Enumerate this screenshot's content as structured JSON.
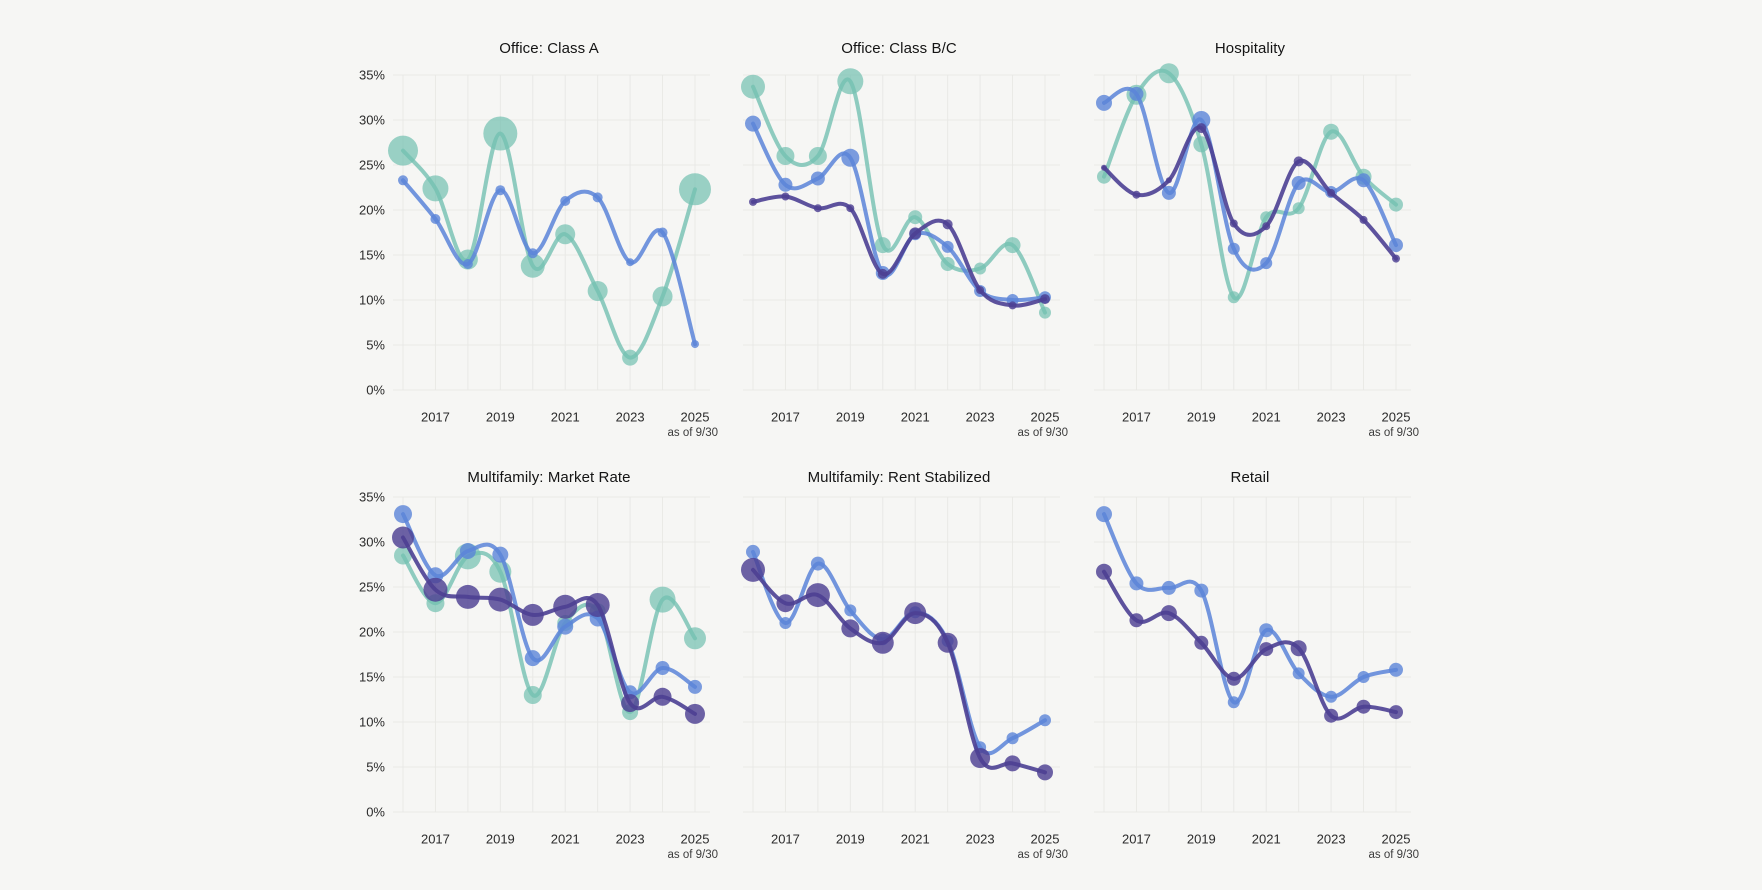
{
  "page": {
    "background": "#f6f6f4"
  },
  "colors": {
    "teal": "#74c0b1",
    "blue": "#5b84d8",
    "purple": "#4d4093",
    "grid": "#e9e9e6",
    "title_text": "#141414",
    "tick_text": "#2b2b2b"
  },
  "axes": {
    "y_ticks": [
      "35%",
      "30%",
      "25%",
      "20%",
      "15%",
      "10%",
      "5%",
      "0%"
    ],
    "y_tick_values": [
      35,
      30,
      25,
      20,
      15,
      10,
      5,
      0
    ],
    "ylim": [
      0,
      35
    ],
    "x_ticks": [
      "2017",
      "2019",
      "2021",
      "2023",
      "2025"
    ],
    "x_tick_years": [
      2017,
      2019,
      2021,
      2023,
      2025
    ],
    "footnote": "as of 9/30",
    "years": [
      2016,
      2017,
      2018,
      2019,
      2020,
      2021,
      2022,
      2023,
      2024,
      2025
    ]
  },
  "chart_data": [
    {
      "type": "line",
      "title": "Office: Class A",
      "y_unit": "percent",
      "x": [
        2016,
        2017,
        2018,
        2019,
        2020,
        2021,
        2022,
        2023,
        2024,
        2025
      ],
      "series": [
        {
          "name": "teal",
          "color": "teal",
          "values": [
            26.6,
            22.4,
            14.5,
            28.5,
            13.8,
            17.3,
            11.0,
            3.6,
            10.4,
            22.3
          ],
          "marker_radii": [
            15,
            13,
            10,
            17,
            12,
            10,
            10,
            8,
            10,
            16
          ]
        },
        {
          "name": "blue",
          "color": "blue",
          "values": [
            23.3,
            19.0,
            14.0,
            22.2,
            15.2,
            21.0,
            21.4,
            14.2,
            17.5,
            5.1
          ],
          "marker_radii": [
            5,
            5,
            5,
            5,
            5,
            5,
            5,
            4,
            5,
            4
          ]
        }
      ]
    },
    {
      "type": "line",
      "title": "Office: Class B/C",
      "y_unit": "percent",
      "x": [
        2016,
        2017,
        2018,
        2019,
        2020,
        2021,
        2022,
        2023,
        2024,
        2025
      ],
      "series": [
        {
          "name": "teal",
          "color": "teal",
          "values": [
            33.7,
            26.0,
            26.0,
            34.3,
            16.1,
            19.2,
            14.0,
            13.5,
            16.1,
            8.6
          ],
          "marker_radii": [
            12,
            9,
            9,
            13,
            8,
            7,
            7,
            6,
            8,
            6
          ]
        },
        {
          "name": "blue",
          "color": "blue",
          "values": [
            29.6,
            22.8,
            23.5,
            25.8,
            13.0,
            17.3,
            15.9,
            11.0,
            10.0,
            10.3
          ],
          "marker_radii": [
            8,
            7,
            7,
            9,
            7,
            6,
            6,
            6,
            6,
            6
          ]
        },
        {
          "name": "purple",
          "color": "purple",
          "values": [
            20.9,
            21.5,
            20.2,
            20.2,
            12.9,
            17.4,
            18.4,
            11.1,
            9.4,
            10.1
          ],
          "marker_radii": [
            4,
            4,
            4,
            4,
            5,
            6,
            5,
            4,
            4,
            5
          ]
        }
      ]
    },
    {
      "type": "line",
      "title": "Hospitality",
      "y_unit": "percent",
      "x": [
        2016,
        2017,
        2018,
        2019,
        2020,
        2021,
        2022,
        2023,
        2024,
        2025
      ],
      "series": [
        {
          "name": "teal",
          "color": "teal",
          "values": [
            23.7,
            32.8,
            35.2,
            27.3,
            10.3,
            19.2,
            20.2,
            28.7,
            23.7,
            20.6
          ],
          "marker_radii": [
            7,
            10,
            10,
            8,
            6,
            6,
            6,
            8,
            8,
            7
          ]
        },
        {
          "name": "blue",
          "color": "blue",
          "values": [
            31.9,
            32.9,
            21.9,
            30.0,
            15.7,
            14.1,
            23.0,
            22.0,
            23.3,
            16.1
          ],
          "marker_radii": [
            8,
            7,
            7,
            9,
            6,
            6,
            7,
            6,
            7,
            7
          ]
        },
        {
          "name": "purple",
          "color": "purple",
          "values": [
            24.7,
            21.7,
            23.3,
            29.1,
            18.5,
            18.2,
            25.4,
            21.9,
            18.9,
            14.6
          ],
          "marker_radii": [
            3,
            4,
            3,
            5,
            4,
            4,
            5,
            4,
            4,
            4
          ]
        }
      ]
    },
    {
      "type": "line",
      "title": "Multifamily: Market Rate",
      "y_unit": "percent",
      "x": [
        2016,
        2017,
        2018,
        2019,
        2020,
        2021,
        2022,
        2023,
        2024,
        2025
      ],
      "series": [
        {
          "name": "teal",
          "color": "teal",
          "values": [
            28.5,
            23.2,
            28.4,
            26.7,
            13.0,
            21.0,
            22.3,
            11.1,
            23.6,
            19.3
          ],
          "marker_radii": [
            9,
            9,
            13,
            11,
            9,
            8,
            8,
            8,
            13,
            11
          ]
        },
        {
          "name": "blue",
          "color": "blue",
          "values": [
            33.1,
            26.3,
            29.0,
            28.6,
            17.1,
            20.6,
            21.5,
            13.3,
            16.0,
            13.9
          ],
          "marker_radii": [
            9,
            8,
            8,
            8,
            8,
            8,
            8,
            7,
            7,
            7
          ]
        },
        {
          "name": "purple",
          "color": "purple",
          "values": [
            30.5,
            24.7,
            23.9,
            23.6,
            21.9,
            22.8,
            23.0,
            12.1,
            12.8,
            10.9
          ],
          "marker_radii": [
            11,
            12,
            12,
            12,
            11,
            12,
            12,
            9,
            9,
            10
          ]
        }
      ]
    },
    {
      "type": "line",
      "title": "Multifamily: Rent Stabilized",
      "y_unit": "percent",
      "x": [
        2016,
        2017,
        2018,
        2019,
        2020,
        2021,
        2022,
        2023,
        2024,
        2025
      ],
      "series": [
        {
          "name": "blue",
          "color": "blue",
          "values": [
            28.9,
            21.0,
            27.6,
            22.4,
            19.2,
            22.2,
            19.0,
            7.2,
            8.2,
            10.2
          ],
          "marker_radii": [
            7,
            6,
            7,
            6,
            6,
            6,
            6,
            6,
            6,
            6
          ]
        },
        {
          "name": "purple",
          "color": "purple",
          "values": [
            26.9,
            23.2,
            24.1,
            20.4,
            18.8,
            22.1,
            18.8,
            6.0,
            5.4,
            4.4
          ],
          "marker_radii": [
            12,
            9,
            12,
            9,
            11,
            11,
            10,
            10,
            8,
            8
          ]
        }
      ]
    },
    {
      "type": "line",
      "title": "Retail",
      "y_unit": "percent",
      "x": [
        2016,
        2017,
        2018,
        2019,
        2020,
        2021,
        2022,
        2023,
        2024,
        2025
      ],
      "series": [
        {
          "name": "blue",
          "color": "blue",
          "values": [
            33.1,
            25.4,
            24.9,
            24.6,
            12.2,
            20.2,
            15.4,
            12.8,
            15.0,
            15.8
          ],
          "marker_radii": [
            8,
            7,
            7,
            7,
            6,
            7,
            6,
            6,
            6,
            7
          ]
        },
        {
          "name": "purple",
          "color": "purple",
          "values": [
            26.7,
            21.3,
            22.1,
            18.8,
            14.8,
            18.1,
            18.2,
            10.7,
            11.7,
            11.1
          ],
          "marker_radii": [
            8,
            7,
            8,
            7,
            7,
            7,
            8,
            7,
            7,
            7
          ]
        }
      ]
    }
  ]
}
